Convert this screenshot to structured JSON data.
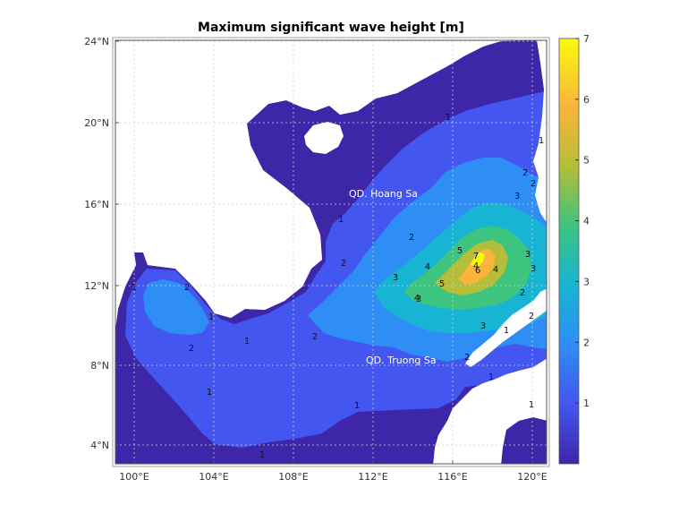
{
  "title": "Maximum significant wave height [m]",
  "lon_ticks": [
    "100°E",
    "104°E",
    "108°E",
    "112°E",
    "116°E",
    "120°E"
  ],
  "lat_ticks": [
    "24°N",
    "20°N",
    "16°N",
    "12°N",
    "8°N",
    "4°N"
  ],
  "colorbar": {
    "ticks": [
      "7",
      "6",
      "5",
      "4",
      "3",
      "2",
      "1"
    ],
    "min": 0,
    "max": 7
  },
  "places": {
    "paracel": "QD. Hoang Sa",
    "spratly": "QD. Truong Sa"
  },
  "contour_labels": [
    "1",
    "1",
    "1",
    "1",
    "1",
    "1",
    "1",
    "1",
    "1",
    "1",
    "1",
    "1",
    "2",
    "2",
    "2",
    "2",
    "2",
    "2",
    "2",
    "2",
    "2",
    "2",
    "3",
    "3",
    "3",
    "3",
    "3",
    "3",
    "4",
    "4",
    "4",
    "4",
    "5",
    "5",
    "6",
    "7"
  ],
  "colors": {
    "land": "#ffffff",
    "level_0": "#3e26a8",
    "level_1": "#4356f0",
    "level_2": "#2f8df6",
    "level_3": "#18b4d4",
    "level_4": "#3dc47e",
    "level_5": "#b5be38",
    "level_6": "#fbb43b",
    "level_7": "#f9fb0e"
  }
}
